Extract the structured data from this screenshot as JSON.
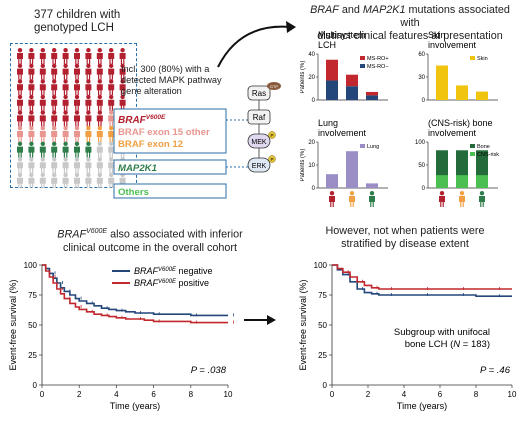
{
  "cohort": {
    "line1": "377 children with",
    "line2": "genotyped LCH"
  },
  "inclusion": {
    "line1": "Incl. 300 (80%) with a",
    "line2": "detected MAPK pathway",
    "line3": "gene alteration"
  },
  "mutation_labels": {
    "braf_v600e_gene": "BRAF",
    "braf_v600e_sup": "V600E",
    "braf_exon15": "BRAF exon 15 other",
    "braf_exon12": "BRAF exon 12",
    "map2k1": "MAP2K1",
    "others": "Others"
  },
  "pathway": {
    "ras": "Ras",
    "gtp": "GTP",
    "raf": "Raf",
    "mek": "MEK",
    "erk": "ERK",
    "p": "P"
  },
  "colors": {
    "braf_v600e": "#b3202f",
    "braf_exon15": "#e8968f",
    "braf_exon12": "#f0a042",
    "map2k1": "#2e7d4a",
    "others": "#c8c8c8",
    "box_border": "#2b6fa8",
    "ms_ro_pos": "#c0282d",
    "ms_ro_neg": "#23477a",
    "skin": "#f1c40f",
    "lung": "#9b8ec7",
    "bone": "#236b3a",
    "cns": "#4cbf52",
    "km_negative": "#23477a",
    "km_positive": "#c0282d"
  },
  "top_right_title": {
    "line1_a": "BRAF",
    "line1_b": " and ",
    "line1_c": "MAP2K1",
    "line1_d": " mutations associated with",
    "line2": "distinct clinical features at presentation"
  },
  "icon_grid": {
    "rows": [
      "braf_v600e",
      "braf_v600e",
      "braf_v600e",
      "braf_v600e",
      "braf_v600e",
      "mixed_exon",
      "map2k1",
      "others",
      "others"
    ],
    "per_row": 10
  },
  "chart_data": [
    {
      "type": "bar",
      "title": "Multisystem LCH",
      "ylabel": "Patients (%)",
      "ylim": [
        0,
        40
      ],
      "yticks": [
        0,
        20,
        40
      ],
      "categories": [
        "BRAF V600E",
        "BRAF other",
        "MAP2K1"
      ],
      "stacked": true,
      "series": [
        {
          "name": "MS-RO+",
          "values": [
            18,
            10,
            3
          ]
        },
        {
          "name": "MS-RO−",
          "values": [
            17,
            12,
            4
          ]
        }
      ]
    },
    {
      "type": "bar",
      "title": "Skin involvement",
      "ylabel": "",
      "ylim": [
        0,
        60
      ],
      "yticks": [
        0,
        30,
        60
      ],
      "categories": [
        "BRAF V600E",
        "BRAF other",
        "MAP2K1"
      ],
      "series": [
        {
          "name": "Skin",
          "values": [
            45,
            19,
            11
          ]
        }
      ]
    },
    {
      "type": "bar",
      "title": "Lung involvement",
      "ylabel": "Patients (%)",
      "ylim": [
        0,
        20
      ],
      "yticks": [
        0,
        10,
        20
      ],
      "categories": [
        "BRAF V600E",
        "BRAF other",
        "MAP2K1"
      ],
      "series": [
        {
          "name": "Lung",
          "values": [
            6,
            16,
            2
          ]
        }
      ]
    },
    {
      "type": "bar",
      "title": "(CNS-risk) bone involvement",
      "ylabel": "",
      "ylim": [
        0,
        100
      ],
      "yticks": [
        0,
        50,
        100
      ],
      "categories": [
        "BRAF V600E",
        "BRAF other",
        "MAP2K1"
      ],
      "overlay": true,
      "series": [
        {
          "name": "Bone",
          "values": [
            82,
            82,
            82
          ]
        },
        {
          "name": "CNS-risk",
          "values": [
            28,
            28,
            28
          ]
        }
      ]
    },
    {
      "type": "line",
      "title": "BRAF V600E also associated with inferior clinical outcome in the overall cohort",
      "xlabel": "Time (years)",
      "ylabel": "Event-free survival (%)",
      "xlim": [
        0,
        10
      ],
      "ylim": [
        0,
        100
      ],
      "xticks": [
        0,
        2,
        4,
        6,
        8,
        10
      ],
      "yticks": [
        0,
        25,
        50,
        75,
        100
      ],
      "legend": "top-right",
      "annotation": "P = .038",
      "series": [
        {
          "name": "BRAF V600E negative",
          "x": [
            0,
            0.2,
            0.4,
            0.6,
            0.8,
            1.0,
            1.2,
            1.5,
            1.8,
            2.0,
            2.4,
            2.8,
            3.2,
            3.6,
            4.0,
            4.5,
            5.0,
            5.5,
            6.0,
            7.0,
            8.0,
            9.0,
            10.0
          ],
          "y": [
            100,
            97,
            93,
            89,
            85,
            81,
            78,
            75,
            72,
            70,
            68,
            66,
            64,
            63,
            62,
            61,
            60,
            60,
            59,
            59,
            58,
            58,
            58
          ]
        },
        {
          "name": "BRAF V600E positive",
          "x": [
            0,
            0.2,
            0.4,
            0.6,
            0.8,
            1.0,
            1.2,
            1.5,
            1.8,
            2.0,
            2.4,
            2.8,
            3.2,
            3.6,
            4.0,
            4.5,
            5.0,
            5.5,
            6.0,
            7.0,
            8.0,
            9.0,
            10.0
          ],
          "y": [
            100,
            95,
            90,
            85,
            80,
            76,
            72,
            68,
            65,
            63,
            61,
            59,
            58,
            57,
            56,
            55,
            55,
            54,
            53,
            53,
            52,
            52,
            52
          ]
        }
      ]
    },
    {
      "type": "line",
      "title": "However, not when patients were stratified by disease extent",
      "xlabel": "Time (years)",
      "ylabel": "Event-free survival (%)",
      "xlim": [
        0,
        10
      ],
      "ylim": [
        0,
        100
      ],
      "xticks": [
        0,
        2,
        4,
        6,
        8,
        10
      ],
      "yticks": [
        0,
        25,
        50,
        75,
        100
      ],
      "annotation": "P = .46",
      "subgroup": {
        "line1": "Subgroup with unifocal",
        "line2": "bone LCH",
        "n": "(N = 183)"
      },
      "series": [
        {
          "name": "BRAF V600E negative",
          "x": [
            0,
            0.3,
            0.6,
            1.0,
            1.4,
            1.8,
            2.2,
            2.6,
            3.0,
            4.0,
            5.0,
            6.0,
            7.0,
            8.0,
            9.0,
            10.0
          ],
          "y": [
            100,
            96,
            92,
            86,
            80,
            77,
            76,
            75,
            75,
            75,
            75,
            75,
            75,
            74,
            74,
            74
          ]
        },
        {
          "name": "BRAF V600E positive",
          "x": [
            0,
            0.3,
            0.6,
            1.0,
            1.4,
            1.8,
            2.2,
            2.6,
            3.0,
            4.0,
            5.0,
            6.0,
            7.0,
            8.0,
            9.0,
            10.0
          ],
          "y": [
            100,
            97,
            94,
            90,
            86,
            83,
            81,
            80,
            80,
            80,
            80,
            80,
            80,
            80,
            80,
            80
          ]
        }
      ]
    }
  ],
  "km_left_title": {
    "gene": "BRAF",
    "sup": "V600E",
    "rest1": " also associated with inferior",
    "line2": "clinical outcome in the overall cohort"
  },
  "km_right_title": {
    "line1": "However, not when patients were",
    "line2": "stratified by disease extent"
  },
  "km_legend": {
    "gene": "BRAF",
    "sup": "V600E",
    "neg": " negative",
    "pos": " positive"
  },
  "km_axes": {
    "x": "Time (years)",
    "y": "Event-free survival (%)",
    "p_left": "P = .038",
    "p_right": "P = .46"
  },
  "subgroup_text": {
    "line1": "Subgroup with unifocal",
    "line2a": "bone LCH (",
    "n_italic": "N",
    "line2b": " = 183)"
  }
}
